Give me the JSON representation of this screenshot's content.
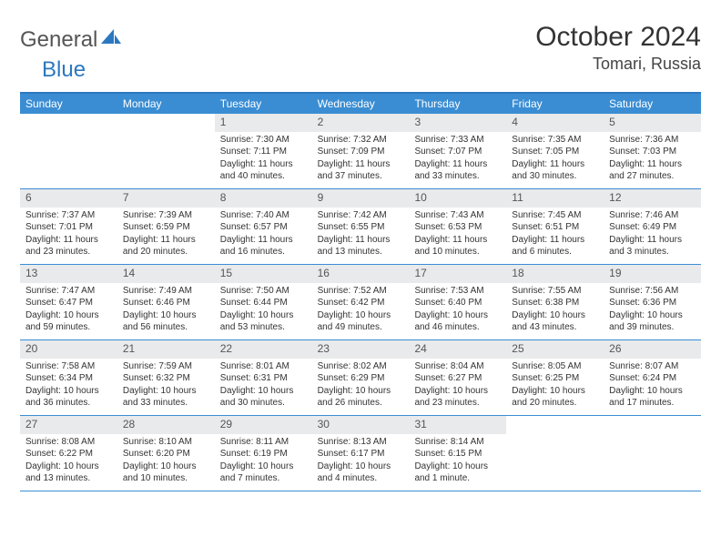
{
  "logo": {
    "text1": "General",
    "text2": "Blue"
  },
  "title": "October 2024",
  "location": "Tomari, Russia",
  "colors": {
    "header_bg": "#3a8dd3",
    "border": "#2c78c0",
    "daynum_bg": "#e9eaec",
    "page_bg": "#ffffff"
  },
  "dayHeaders": [
    "Sunday",
    "Monday",
    "Tuesday",
    "Wednesday",
    "Thursday",
    "Friday",
    "Saturday"
  ],
  "weeks": [
    [
      null,
      null,
      {
        "n": "1",
        "sr": "7:30 AM",
        "ss": "7:11 PM",
        "dl": "11 hours and 40 minutes."
      },
      {
        "n": "2",
        "sr": "7:32 AM",
        "ss": "7:09 PM",
        "dl": "11 hours and 37 minutes."
      },
      {
        "n": "3",
        "sr": "7:33 AM",
        "ss": "7:07 PM",
        "dl": "11 hours and 33 minutes."
      },
      {
        "n": "4",
        "sr": "7:35 AM",
        "ss": "7:05 PM",
        "dl": "11 hours and 30 minutes."
      },
      {
        "n": "5",
        "sr": "7:36 AM",
        "ss": "7:03 PM",
        "dl": "11 hours and 27 minutes."
      }
    ],
    [
      {
        "n": "6",
        "sr": "7:37 AM",
        "ss": "7:01 PM",
        "dl": "11 hours and 23 minutes."
      },
      {
        "n": "7",
        "sr": "7:39 AM",
        "ss": "6:59 PM",
        "dl": "11 hours and 20 minutes."
      },
      {
        "n": "8",
        "sr": "7:40 AM",
        "ss": "6:57 PM",
        "dl": "11 hours and 16 minutes."
      },
      {
        "n": "9",
        "sr": "7:42 AM",
        "ss": "6:55 PM",
        "dl": "11 hours and 13 minutes."
      },
      {
        "n": "10",
        "sr": "7:43 AM",
        "ss": "6:53 PM",
        "dl": "11 hours and 10 minutes."
      },
      {
        "n": "11",
        "sr": "7:45 AM",
        "ss": "6:51 PM",
        "dl": "11 hours and 6 minutes."
      },
      {
        "n": "12",
        "sr": "7:46 AM",
        "ss": "6:49 PM",
        "dl": "11 hours and 3 minutes."
      }
    ],
    [
      {
        "n": "13",
        "sr": "7:47 AM",
        "ss": "6:47 PM",
        "dl": "10 hours and 59 minutes."
      },
      {
        "n": "14",
        "sr": "7:49 AM",
        "ss": "6:46 PM",
        "dl": "10 hours and 56 minutes."
      },
      {
        "n": "15",
        "sr": "7:50 AM",
        "ss": "6:44 PM",
        "dl": "10 hours and 53 minutes."
      },
      {
        "n": "16",
        "sr": "7:52 AM",
        "ss": "6:42 PM",
        "dl": "10 hours and 49 minutes."
      },
      {
        "n": "17",
        "sr": "7:53 AM",
        "ss": "6:40 PM",
        "dl": "10 hours and 46 minutes."
      },
      {
        "n": "18",
        "sr": "7:55 AM",
        "ss": "6:38 PM",
        "dl": "10 hours and 43 minutes."
      },
      {
        "n": "19",
        "sr": "7:56 AM",
        "ss": "6:36 PM",
        "dl": "10 hours and 39 minutes."
      }
    ],
    [
      {
        "n": "20",
        "sr": "7:58 AM",
        "ss": "6:34 PM",
        "dl": "10 hours and 36 minutes."
      },
      {
        "n": "21",
        "sr": "7:59 AM",
        "ss": "6:32 PM",
        "dl": "10 hours and 33 minutes."
      },
      {
        "n": "22",
        "sr": "8:01 AM",
        "ss": "6:31 PM",
        "dl": "10 hours and 30 minutes."
      },
      {
        "n": "23",
        "sr": "8:02 AM",
        "ss": "6:29 PM",
        "dl": "10 hours and 26 minutes."
      },
      {
        "n": "24",
        "sr": "8:04 AM",
        "ss": "6:27 PM",
        "dl": "10 hours and 23 minutes."
      },
      {
        "n": "25",
        "sr": "8:05 AM",
        "ss": "6:25 PM",
        "dl": "10 hours and 20 minutes."
      },
      {
        "n": "26",
        "sr": "8:07 AM",
        "ss": "6:24 PM",
        "dl": "10 hours and 17 minutes."
      }
    ],
    [
      {
        "n": "27",
        "sr": "8:08 AM",
        "ss": "6:22 PM",
        "dl": "10 hours and 13 minutes."
      },
      {
        "n": "28",
        "sr": "8:10 AM",
        "ss": "6:20 PM",
        "dl": "10 hours and 10 minutes."
      },
      {
        "n": "29",
        "sr": "8:11 AM",
        "ss": "6:19 PM",
        "dl": "10 hours and 7 minutes."
      },
      {
        "n": "30",
        "sr": "8:13 AM",
        "ss": "6:17 PM",
        "dl": "10 hours and 4 minutes."
      },
      {
        "n": "31",
        "sr": "8:14 AM",
        "ss": "6:15 PM",
        "dl": "10 hours and 1 minute."
      },
      null,
      null
    ]
  ],
  "labels": {
    "sunrise": "Sunrise:",
    "sunset": "Sunset:",
    "daylight": "Daylight:"
  }
}
